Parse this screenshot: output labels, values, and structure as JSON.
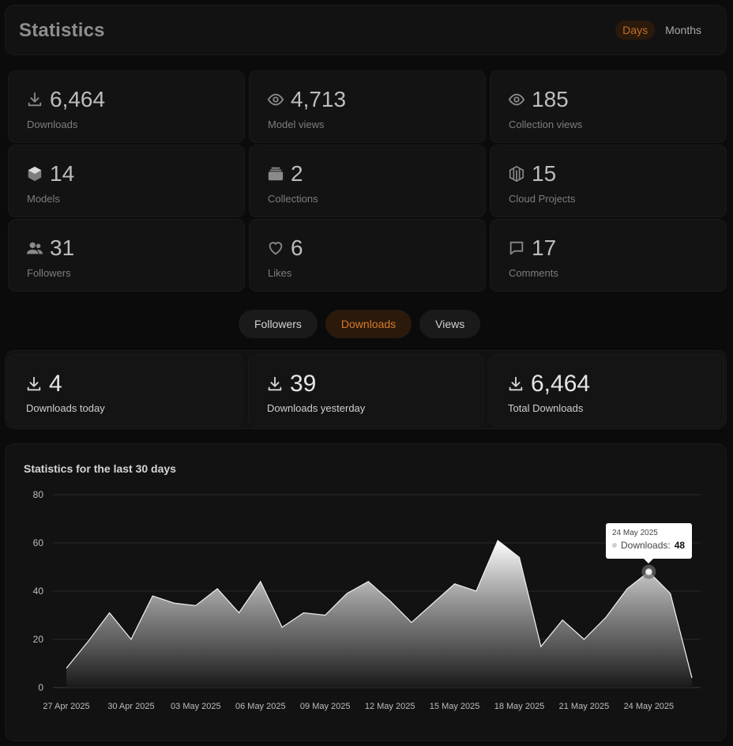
{
  "header": {
    "title": "Statistics",
    "period": {
      "days_label": "Days",
      "months_label": "Months",
      "selected": "Days"
    }
  },
  "stats": [
    {
      "icon": "download-icon",
      "value": "6,464",
      "label": "Downloads"
    },
    {
      "icon": "eye-icon",
      "value": "4,713",
      "label": "Model views"
    },
    {
      "icon": "eye-icon",
      "value": "185",
      "label": "Collection views"
    },
    {
      "icon": "cube-icon",
      "value": "14",
      "label": "Models"
    },
    {
      "icon": "stack-icon",
      "value": "2",
      "label": "Collections"
    },
    {
      "icon": "cloud-project-icon",
      "value": "15",
      "label": "Cloud Projects"
    },
    {
      "icon": "users-icon",
      "value": "31",
      "label": "Followers"
    },
    {
      "icon": "heart-icon",
      "value": "6",
      "label": "Likes"
    },
    {
      "icon": "comment-icon",
      "value": "17",
      "label": "Comments"
    }
  ],
  "tabs": [
    {
      "label": "Followers",
      "active": false
    },
    {
      "label": "Downloads",
      "active": true
    },
    {
      "label": "Views",
      "active": false
    }
  ],
  "downloads_summary": [
    {
      "icon": "download-icon",
      "value": "4",
      "label": "Downloads today"
    },
    {
      "icon": "download-icon",
      "value": "39",
      "label": "Downloads yesterday"
    },
    {
      "icon": "download-icon",
      "value": "6,464",
      "label": "Total Downloads"
    }
  ],
  "chart_title": "Statistics for the last 30 days",
  "tooltip": {
    "date": "24 May 2025",
    "series": "Downloads:",
    "value": "48"
  },
  "colors": {
    "accent": "#d87b2a",
    "background": "#0b0b0b",
    "panel": "#121212"
  },
  "chart_data": {
    "type": "area",
    "title": "Statistics for the last 30 days",
    "x": [
      "27 Apr 2025",
      "28 Apr 2025",
      "29 Apr 2025",
      "30 Apr 2025",
      "01 May 2025",
      "02 May 2025",
      "03 May 2025",
      "04 May 2025",
      "05 May 2025",
      "06 May 2025",
      "07 May 2025",
      "08 May 2025",
      "09 May 2025",
      "10 May 2025",
      "11 May 2025",
      "12 May 2025",
      "13 May 2025",
      "14 May 2025",
      "15 May 2025",
      "16 May 2025",
      "17 May 2025",
      "18 May 2025",
      "19 May 2025",
      "20 May 2025",
      "21 May 2025",
      "22 May 2025",
      "23 May 2025",
      "24 May 2025",
      "25 May 2025",
      "26 May 2025"
    ],
    "x_tick_labels": [
      "27 Apr 2025",
      "30 Apr 2025",
      "03 May 2025",
      "06 May 2025",
      "09 May 2025",
      "12 May 2025",
      "15 May 2025",
      "18 May 2025",
      "21 May 2025",
      "24 May 2025"
    ],
    "series": [
      {
        "name": "Downloads",
        "values": [
          8,
          19,
          31,
          20,
          38,
          35,
          34,
          41,
          31,
          44,
          25,
          31,
          30,
          39,
          44,
          36,
          27,
          35,
          43,
          40,
          61,
          54,
          17,
          28,
          20,
          29,
          41,
          48,
          39,
          4
        ]
      }
    ],
    "ylim": [
      0,
      80
    ],
    "y_ticks": [
      0,
      20,
      40,
      60,
      80
    ],
    "grid": true,
    "highlight_index": 27
  }
}
